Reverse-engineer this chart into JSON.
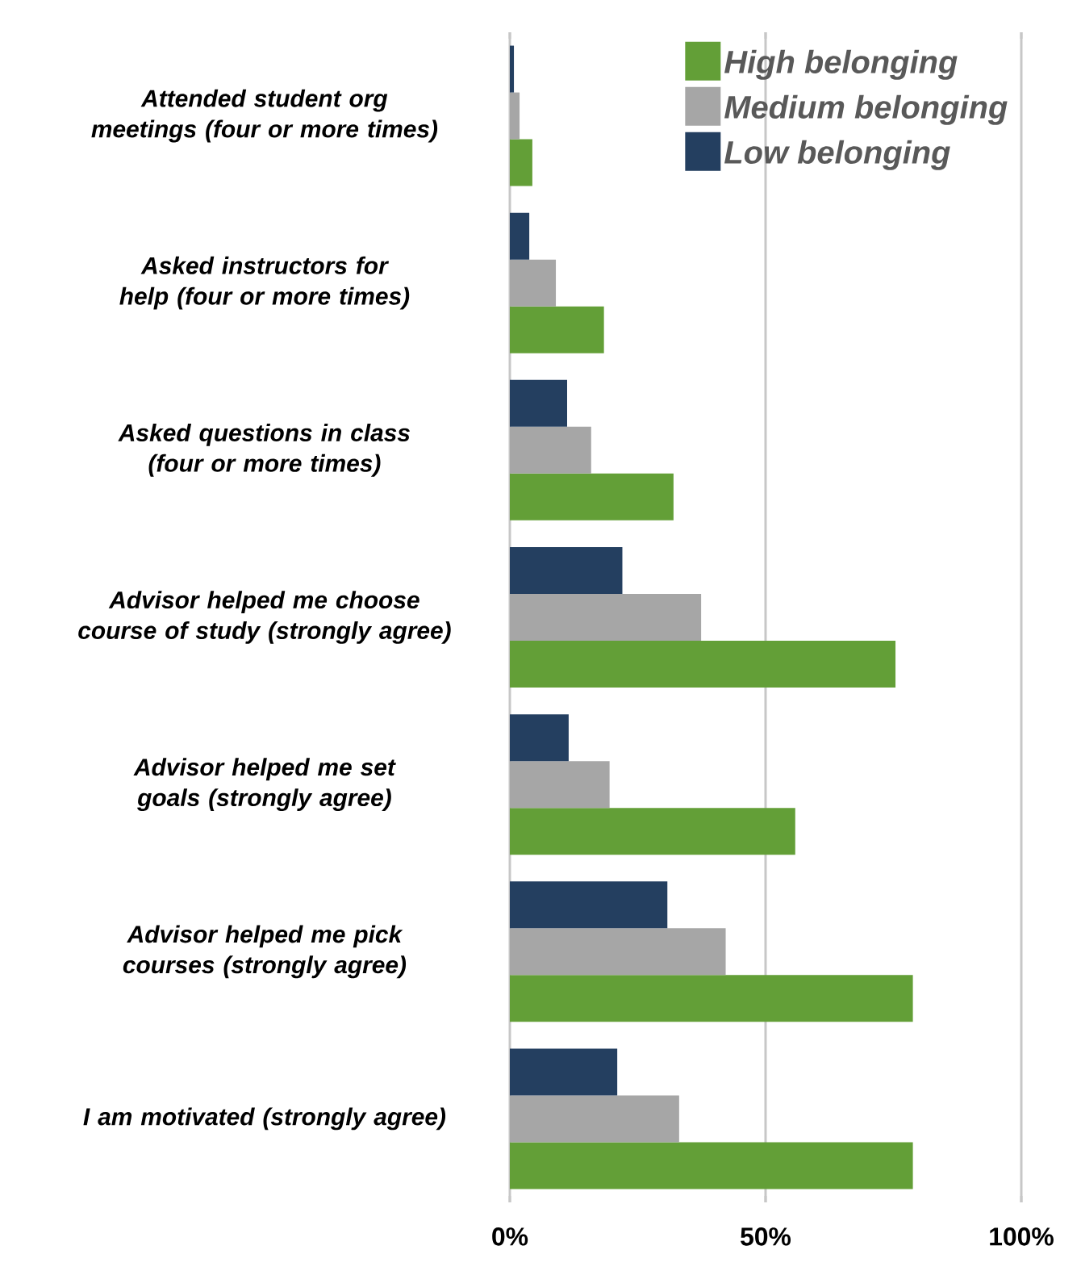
{
  "chart_data": {
    "type": "bar",
    "orientation": "horizontal",
    "categories": [
      "Attended student org meetings (four or more times)",
      "Asked instructors for help (four or more times)",
      "Asked questions in class (four or more times)",
      "Advisor helped me choose course of study (strongly agree)",
      "Advisor helped me set goals (strongly agree)",
      "Advisor helped me pick courses (strongly agree)",
      "I am motivated (strongly agree)"
    ],
    "series": [
      {
        "name": "High belonging",
        "color": "#639f37",
        "values": [
          4.4,
          18.4,
          32.0,
          75.4,
          55.8,
          78.8,
          78.8
        ]
      },
      {
        "name": "Medium belonging",
        "color": "#a6a6a6",
        "values": [
          1.9,
          9.0,
          15.9,
          37.4,
          19.5,
          42.2,
          33.1
        ]
      },
      {
        "name": "Low belonging",
        "color": "#243f60",
        "values": [
          0.8,
          3.8,
          11.2,
          22.0,
          11.5,
          30.8,
          21.0
        ]
      }
    ],
    "xlim": [
      0,
      100
    ],
    "xticks": [
      {
        "value": 0,
        "label": "0%"
      },
      {
        "value": 50,
        "label": "50%"
      },
      {
        "value": 100,
        "label": "100%"
      }
    ],
    "grid": "x",
    "legend": "top right"
  }
}
